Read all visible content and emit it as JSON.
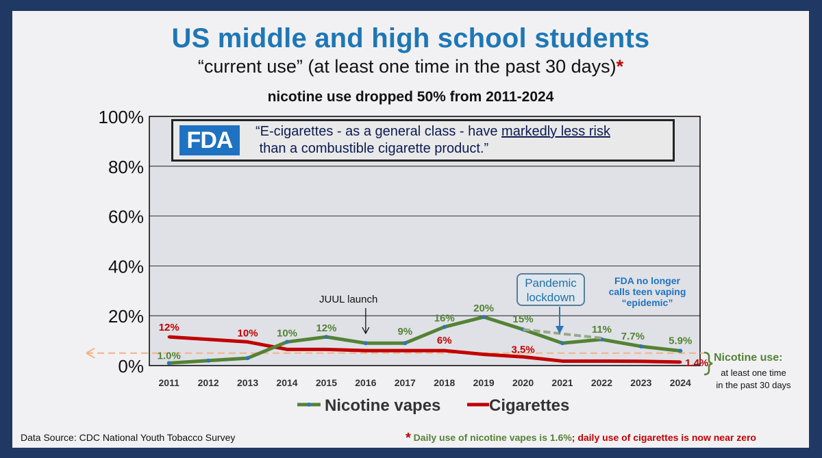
{
  "title": "US middle and high school students",
  "subtitle": "“current use” (at least one time in the past 30 days)",
  "subtitle_star": "*",
  "headline": "nicotine use dropped 50% from 2011-2024",
  "fda": {
    "logo": "FDA",
    "quote_part1": "“E-cigarettes - as a general class - have ",
    "quote_underlined": "markedly less risk",
    "quote_part2": "than a combustible cigarette product.”"
  },
  "annotations": {
    "juul": "JUUL launch",
    "pandemic_line1": "Pandemic",
    "pandemic_line2": "lockdown",
    "fda_note_line1": "FDA no  longer",
    "fda_note_line2": "calls teen vaping",
    "fda_note_line3": "“epidemic”",
    "nicotine_use_label": "Nicotine use:",
    "nicotine_use_sub1": "at least one time",
    "nicotine_use_sub2": "in the past 30 days"
  },
  "source": "Data Source:  CDC National Youth Tobacco Survey",
  "footnote": {
    "star": "*",
    "green": " Daily use of nicotine vapes is 1.6%",
    "red": "; daily use of cigarettes is now near zero"
  },
  "colors": {
    "vapes": "#548235",
    "cigarettes": "#c00000",
    "title": "#1f77b4",
    "frame": "#1f3864",
    "reference_line": "#f4b183"
  },
  "chart_data": {
    "type": "line",
    "x": [
      "2011",
      "2012",
      "2013",
      "2014",
      "2015",
      "2016",
      "2017",
      "2018",
      "2019",
      "2020",
      "2021",
      "2022",
      "2023",
      "2024"
    ],
    "ylim": [
      0,
      100
    ],
    "yticks": [
      "0%",
      "20%",
      "40%",
      "60%",
      "80%",
      "100%"
    ],
    "grid": true,
    "legend": "bottom",
    "series": [
      {
        "name": "Nicotine vapes",
        "values": [
          1.0,
          2.0,
          3.0,
          9.5,
          11.5,
          9.0,
          9.0,
          15.5,
          19.5,
          14.5,
          9.0,
          10.5,
          7.7,
          5.9
        ],
        "labels": [
          "1.0%",
          "",
          "",
          "10%",
          "12%",
          "",
          "9%",
          "16%",
          "20%",
          "15%",
          "",
          "11%",
          "7.7%",
          "5.9%"
        ]
      },
      {
        "name": "Cigarettes",
        "values": [
          11.5,
          10.5,
          9.5,
          6.5,
          6.5,
          6.0,
          6.0,
          6.0,
          4.5,
          3.5,
          1.8,
          1.8,
          1.7,
          1.4
        ],
        "labels": [
          "12%",
          "",
          "10%",
          "",
          "",
          "",
          "",
          "6%",
          "",
          "3.5%",
          "",
          "",
          "",
          "1.4%"
        ]
      }
    ],
    "pandemic_counterfactual": {
      "from": "2020",
      "to": "2022",
      "values": [
        14.5,
        11.0
      ]
    },
    "reference_line_value": 5
  }
}
